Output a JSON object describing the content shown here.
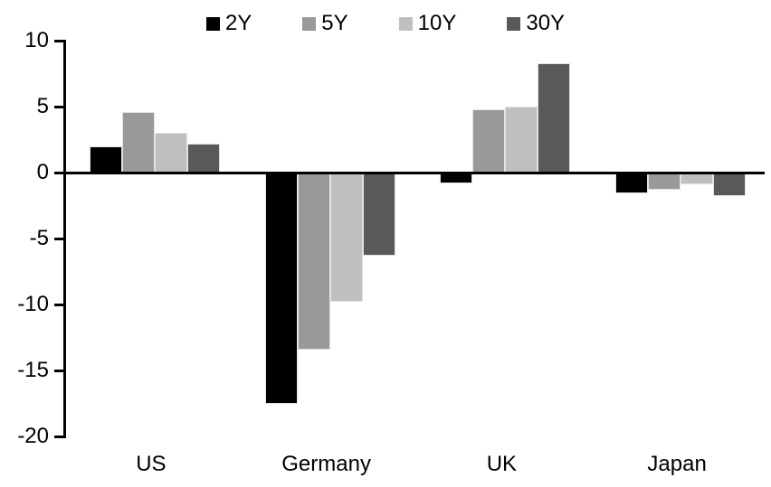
{
  "chart_data": {
    "type": "bar",
    "title": "",
    "categories": [
      "US",
      "Germany",
      "UK",
      "Japan"
    ],
    "series": [
      {
        "name": "2Y",
        "color": "#000000",
        "values": [
          2.0,
          -17.5,
          -0.8,
          -1.6
        ]
      },
      {
        "name": "5Y",
        "color": "#999999",
        "values": [
          4.6,
          -13.4,
          4.8,
          -1.3
        ]
      },
      {
        "name": "10Y",
        "color": "#bfbfbf",
        "values": [
          3.0,
          -9.8,
          5.0,
          -0.9
        ]
      },
      {
        "name": "30Y",
        "color": "#595959",
        "values": [
          2.2,
          -6.3,
          8.3,
          -1.8
        ]
      }
    ],
    "ylim": [
      -20,
      10
    ],
    "yticks": [
      10,
      5,
      0,
      -5,
      -10,
      -15,
      -20
    ],
    "grid": false,
    "legend_position": "top-center",
    "axis_color": "#000000",
    "background": "#ffffff"
  }
}
